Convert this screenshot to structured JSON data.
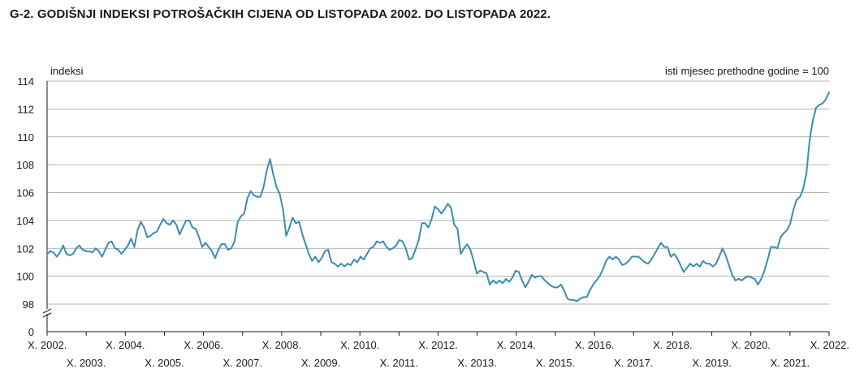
{
  "title": "G-2.  GODIŠNJI INDEKSI POTROŠAČKIH CIJENA OD LISTOPADA 2002. DO LISTOPADA 2022.",
  "chart_data": {
    "type": "line",
    "ylabel": "indeksi",
    "note": "isti mjesec prethodne godine = 100",
    "y_ticks": [
      0,
      98,
      100,
      102,
      104,
      106,
      108,
      110,
      112,
      114
    ],
    "axis_break": true,
    "x_tick_labels": [
      "X. 2002.",
      "X. 2003.",
      "X. 2004.",
      "X. 2005.",
      "X. 2006.",
      "X. 2007.",
      "X. 2008.",
      "X. 2009.",
      "X. 2010.",
      "X. 2011.",
      "X. 2012.",
      "X. 2013.",
      "X. 2014.",
      "X. 2015.",
      "X. 2016.",
      "X. 2017.",
      "X. 2018.",
      "X. 2019.",
      "X. 2020.",
      "X. 2021.",
      "X. 2022."
    ],
    "color": "#3a8db3",
    "grid": true,
    "series": [
      {
        "values": [
          101.6,
          101.8,
          101.7,
          101.4,
          101.7,
          102.2,
          101.6,
          101.5,
          101.6,
          102.0,
          102.2,
          101.9,
          101.8,
          101.8,
          101.7,
          102.0,
          101.8,
          101.4,
          101.9,
          102.4,
          102.5,
          102.0,
          101.9,
          101.6,
          101.9,
          102.2,
          102.7,
          102.1,
          103.3,
          103.9,
          103.5,
          102.8,
          102.9,
          103.1,
          103.2,
          103.7,
          104.1,
          103.8,
          103.7,
          104.0,
          103.7,
          103.0,
          103.5,
          104.0,
          104.0,
          103.5,
          103.4,
          102.8,
          102.1,
          102.4,
          102.1,
          101.8,
          101.3,
          101.9,
          102.3,
          102.3,
          101.9,
          102.0,
          102.5,
          103.9,
          104.3,
          104.5,
          105.6,
          106.1,
          105.8,
          105.7,
          105.7,
          106.4,
          107.6,
          108.4,
          107.3,
          106.4,
          105.9,
          104.8,
          102.9,
          103.5,
          104.2,
          103.8,
          103.9,
          103.0,
          102.3,
          101.6,
          101.1,
          101.4,
          101.0,
          101.3,
          101.8,
          101.9,
          101.0,
          100.9,
          100.7,
          100.9,
          100.7,
          100.9,
          100.8,
          101.2,
          101.0,
          101.4,
          101.2,
          101.6,
          102.0,
          102.1,
          102.5,
          102.4,
          102.5,
          102.1,
          101.9,
          102.0,
          102.2,
          102.6,
          102.5,
          102.0,
          101.2,
          101.3,
          101.9,
          102.6,
          103.8,
          103.8,
          103.5,
          104.1,
          105.0,
          104.8,
          104.5,
          104.8,
          105.2,
          104.9,
          103.7,
          103.4,
          101.6,
          102.0,
          102.3,
          101.9,
          101.1,
          100.2,
          100.4,
          100.3,
          100.2,
          99.4,
          99.7,
          99.5,
          99.7,
          99.5,
          99.8,
          99.6,
          99.9,
          100.4,
          100.3,
          99.7,
          99.2,
          99.6,
          100.1,
          99.9,
          100.0,
          100.0,
          99.7,
          99.5,
          99.3,
          99.2,
          99.2,
          99.4,
          99.0,
          98.4,
          98.3,
          98.3,
          98.2,
          98.4,
          98.5,
          98.5,
          99.0,
          99.4,
          99.7,
          100.0,
          100.5,
          101.1,
          101.4,
          101.2,
          101.4,
          101.2,
          100.8,
          100.9,
          101.1,
          101.4,
          101.4,
          101.4,
          101.2,
          101.0,
          100.9,
          101.2,
          101.6,
          102.0,
          102.4,
          102.1,
          102.1,
          101.4,
          101.6,
          101.3,
          100.8,
          100.3,
          100.6,
          100.9,
          100.7,
          100.9,
          100.7,
          101.1,
          100.9,
          100.9,
          100.7,
          100.9,
          101.4,
          102.0,
          101.5,
          100.8,
          100.1,
          99.7,
          99.8,
          99.7,
          99.9,
          100.0,
          99.9,
          99.8,
          99.4,
          99.8,
          100.4,
          101.2,
          102.1,
          102.1,
          102.0,
          102.8,
          103.1,
          103.3,
          103.8,
          104.8,
          105.5,
          105.7,
          106.3,
          107.4,
          109.8,
          111.2,
          112.1,
          112.3,
          112.4,
          112.7,
          113.2
        ]
      }
    ]
  }
}
